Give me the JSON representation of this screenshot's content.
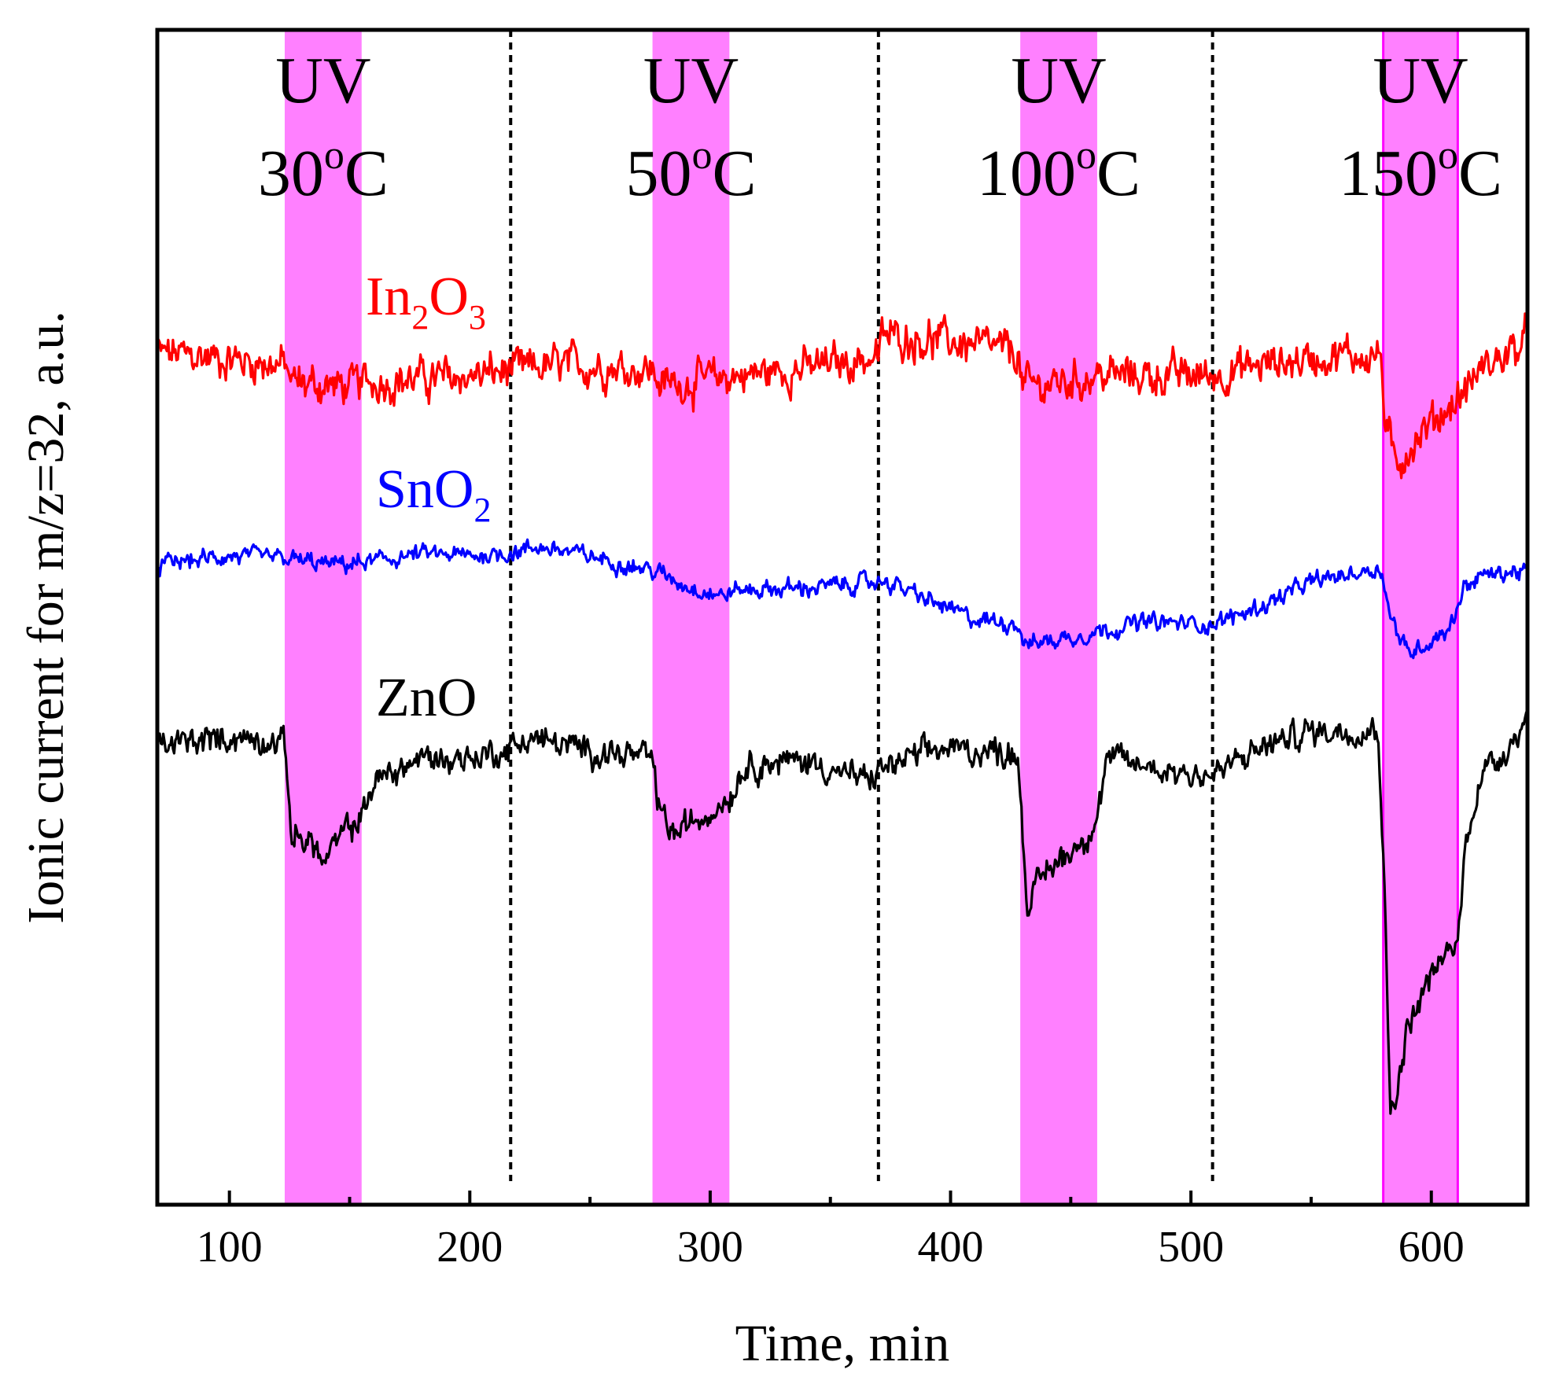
{
  "chart_data": {
    "type": "line",
    "title": "",
    "xlabel": "Time, min",
    "ylabel": "Ionic current for m/z=32, a.u.",
    "xlim": [
      70,
      640
    ],
    "ylim": [
      0,
      100
    ],
    "xticks": [
      100,
      200,
      300,
      400,
      500,
      600
    ],
    "yticks_shown": false,
    "colors": {
      "In2O3": "#ff0000",
      "SnO2": "#0000ff",
      "ZnO": "#000000",
      "uv_band": "#ff80ff",
      "uv_band_edge": "#ff00ff"
    },
    "uv_periods": [
      {
        "uv_label": "UV",
        "temp_label": "30",
        "sup": "o",
        "unit": "C",
        "start": 123,
        "end": 155
      },
      {
        "uv_label": "UV",
        "temp_label": "50",
        "sup": "o",
        "unit": "C",
        "start": 276,
        "end": 308
      },
      {
        "uv_label": "UV",
        "temp_label": "100",
        "sup": "o",
        "unit": "C",
        "start": 429,
        "end": 461
      },
      {
        "uv_label": "UV",
        "temp_label": "150",
        "sup": "o",
        "unit": "C",
        "start": 580,
        "end": 611
      }
    ],
    "dashed_dividers": [
      217,
      370,
      509
    ],
    "series": [
      {
        "name": "In2O3",
        "label_main": "In",
        "label_sub1": "2",
        "label_mid": "O",
        "label_sub2": "3",
        "noise": 2.2,
        "points": [
          [
            70,
            72.5
          ],
          [
            100,
            72.0
          ],
          [
            120,
            71.5
          ],
          [
            123,
            71.5
          ],
          [
            126,
            70.0
          ],
          [
            150,
            69.6
          ],
          [
            155,
            70.0
          ],
          [
            180,
            70.3
          ],
          [
            200,
            70.5
          ],
          [
            217,
            71.0
          ],
          [
            240,
            71.5
          ],
          [
            270,
            71.2
          ],
          [
            276,
            71.0
          ],
          [
            280,
            69.8
          ],
          [
            300,
            70.2
          ],
          [
            308,
            70.5
          ],
          [
            340,
            71.2
          ],
          [
            370,
            72.2
          ],
          [
            372,
            74.0
          ],
          [
            400,
            73.5
          ],
          [
            428,
            72.5
          ],
          [
            430,
            69.6
          ],
          [
            450,
            70.1
          ],
          [
            461,
            70.6
          ],
          [
            490,
            70.6
          ],
          [
            509,
            70.6
          ],
          [
            530,
            71.5
          ],
          [
            560,
            72.3
          ],
          [
            579,
            72.3
          ],
          [
            581,
            66.0
          ],
          [
            585,
            63.0
          ],
          [
            595,
            65.5
          ],
          [
            605,
            67.5
          ],
          [
            611,
            68.5
          ],
          [
            620,
            71.0
          ],
          [
            640,
            73.5
          ]
        ]
      },
      {
        "name": "SnO2",
        "label_main": "SnO",
        "label_sub1": "2",
        "label_mid": "",
        "label_sub2": "",
        "noise": 1.0,
        "points": [
          [
            70,
            54.5
          ],
          [
            100,
            55.2
          ],
          [
            123,
            55.0
          ],
          [
            140,
            54.5
          ],
          [
            155,
            54.6
          ],
          [
            180,
            55.4
          ],
          [
            200,
            55.2
          ],
          [
            217,
            55.5
          ],
          [
            230,
            56.0
          ],
          [
            250,
            55.2
          ],
          [
            276,
            54.0
          ],
          [
            290,
            52.7
          ],
          [
            305,
            51.8
          ],
          [
            310,
            52.3
          ],
          [
            340,
            52.5
          ],
          [
            370,
            53.0
          ],
          [
            372,
            53.2
          ],
          [
            390,
            51.5
          ],
          [
            410,
            49.8
          ],
          [
            428,
            49.5
          ],
          [
            431,
            47.7
          ],
          [
            450,
            48.3
          ],
          [
            461,
            48.8
          ],
          [
            480,
            49.6
          ],
          [
            509,
            49.4
          ],
          [
            530,
            51.0
          ],
          [
            550,
            53.0
          ],
          [
            578,
            54.2
          ],
          [
            580,
            53.5
          ],
          [
            583,
            50.0
          ],
          [
            590,
            47.0
          ],
          [
            600,
            48.0
          ],
          [
            609,
            49.5
          ],
          [
            613,
            52.5
          ],
          [
            620,
            53.5
          ],
          [
            640,
            54.0
          ]
        ]
      },
      {
        "name": "ZnO",
        "label_main": "ZnO",
        "label_sub1": "",
        "label_mid": "",
        "label_sub2": "",
        "noise": 1.6,
        "points": [
          [
            70,
            39.0
          ],
          [
            100,
            39.8
          ],
          [
            120,
            39.5
          ],
          [
            123,
            39.0
          ],
          [
            126,
            31.5
          ],
          [
            135,
            30.8
          ],
          [
            139,
            29.0
          ],
          [
            147,
            31.5
          ],
          [
            155,
            33.0
          ],
          [
            160,
            36.0
          ],
          [
            180,
            38.0
          ],
          [
            200,
            38.0
          ],
          [
            217,
            38.8
          ],
          [
            225,
            39.8
          ],
          [
            245,
            38.8
          ],
          [
            270,
            38.2
          ],
          [
            276,
            37.8
          ],
          [
            279,
            33.5
          ],
          [
            285,
            31.5
          ],
          [
            300,
            33.5
          ],
          [
            308,
            34.8
          ],
          [
            315,
            37.5
          ],
          [
            340,
            37.8
          ],
          [
            366,
            36.0
          ],
          [
            370,
            37.0
          ],
          [
            395,
            38.8
          ],
          [
            428,
            38.5
          ],
          [
            430,
            31.5
          ],
          [
            432,
            25.5
          ],
          [
            440,
            28.5
          ],
          [
            455,
            31.0
          ],
          [
            461,
            33.0
          ],
          [
            465,
            38.0
          ],
          [
            490,
            37.0
          ],
          [
            509,
            36.5
          ],
          [
            530,
            39.0
          ],
          [
            550,
            40.3
          ],
          [
            578,
            40.5
          ],
          [
            580,
            30.0
          ],
          [
            583,
            8.0
          ],
          [
            587,
            11.0
          ],
          [
            590,
            15.0
          ],
          [
            600,
            19.5
          ],
          [
            611,
            22.5
          ],
          [
            614,
            30.0
          ],
          [
            620,
            36.5
          ],
          [
            630,
            38.5
          ],
          [
            640,
            41.5
          ]
        ]
      }
    ]
  }
}
